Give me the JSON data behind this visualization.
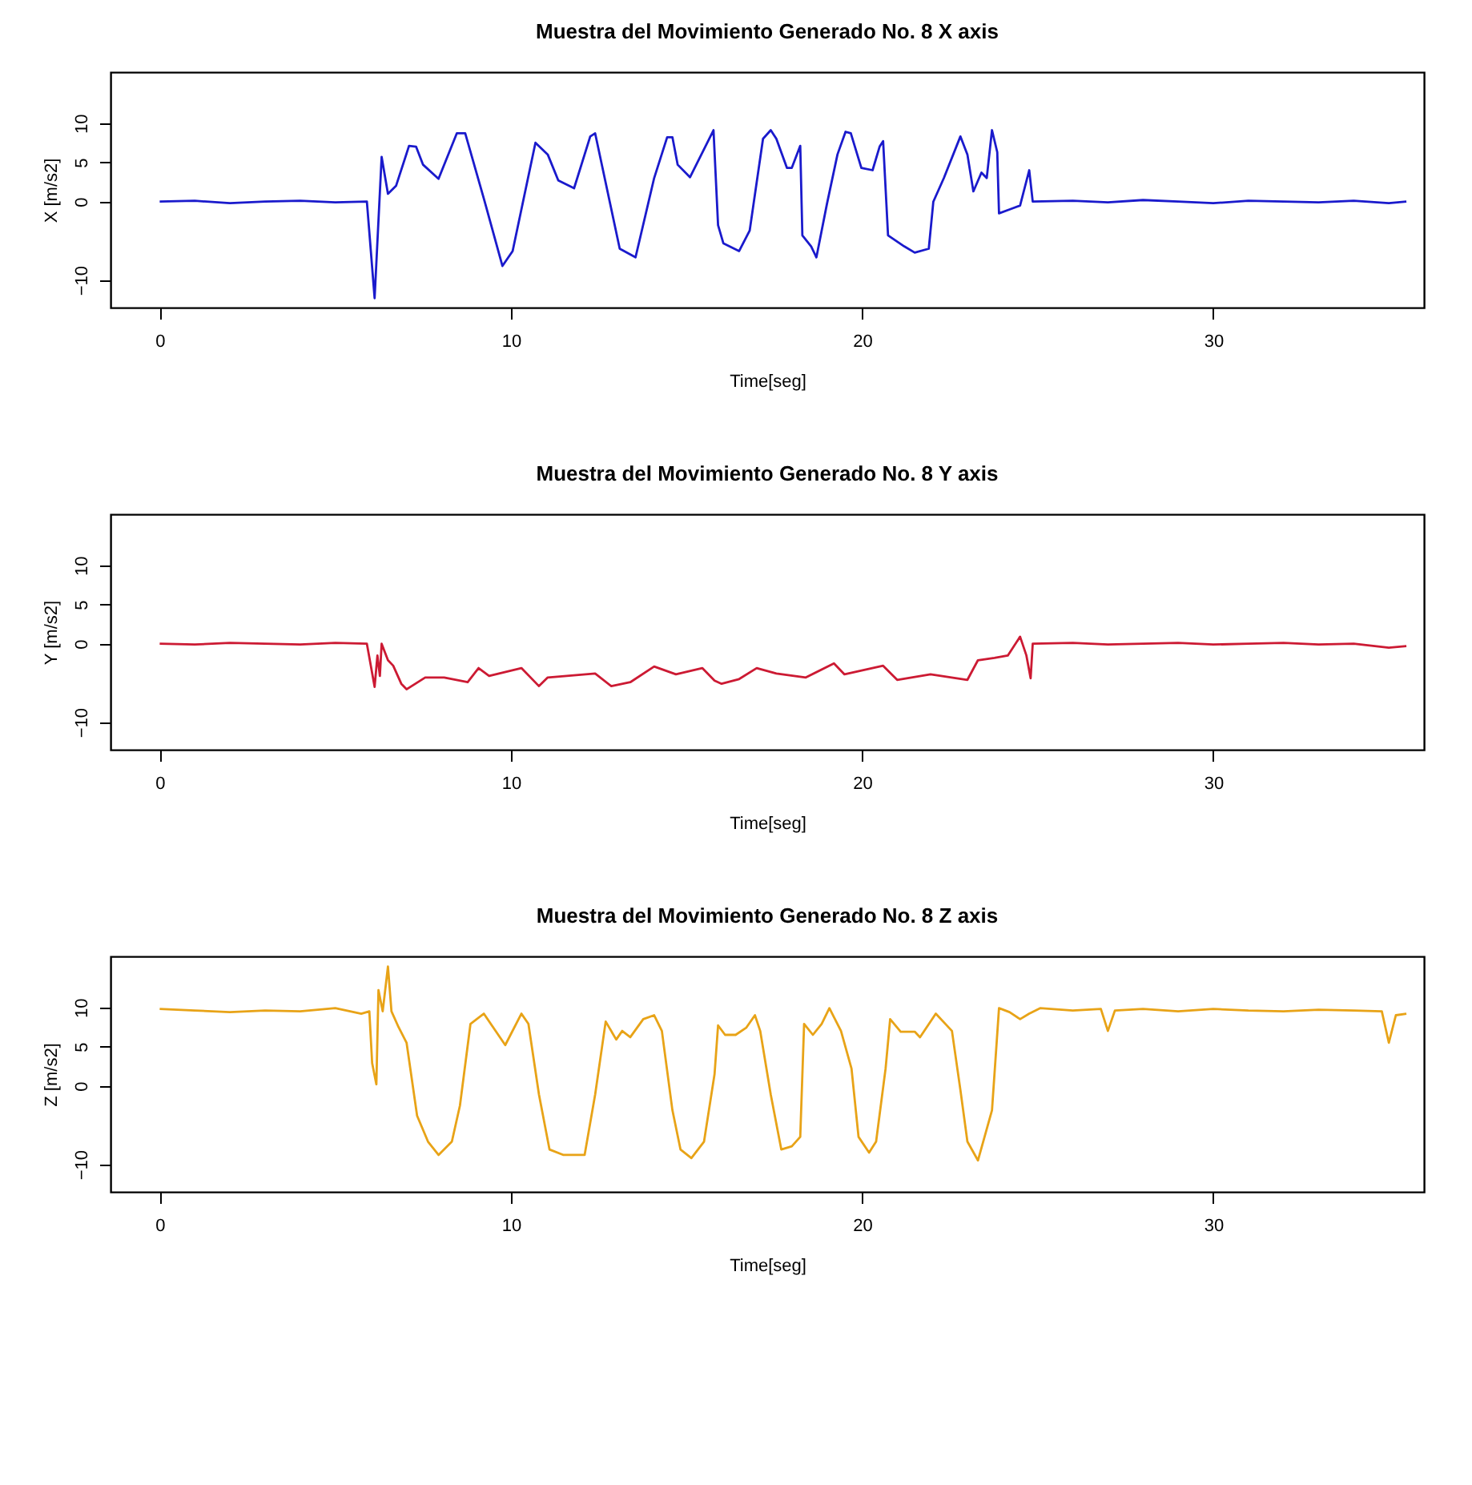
{
  "chart_data": [
    {
      "type": "line",
      "title": "Muestra del Movimiento Generado No.  8 X axis",
      "xlabel": "Time[seg]",
      "ylabel": "X [m/s2]",
      "color": "#1a1acc",
      "xlim": [
        -1.4,
        36
      ],
      "ylim": [
        -13.5,
        16.5
      ],
      "xticks": [
        0,
        10,
        20,
        30
      ],
      "yticks": [
        -10,
        0,
        5,
        10
      ],
      "x": [
        0,
        1,
        2,
        3,
        4,
        5,
        5.9,
        6.12,
        6.32,
        6.5,
        6.73,
        7.1,
        7.3,
        7.5,
        7.94,
        8.46,
        8.7,
        9.23,
        9.76,
        10.05,
        10.7,
        11.05,
        11.35,
        11.8,
        12.26,
        12.4,
        13.1,
        13.55,
        14.08,
        14.45,
        14.6,
        14.75,
        15.1,
        15.77,
        15.9,
        16.05,
        16.5,
        16.8,
        17.18,
        17.4,
        17.56,
        17.86,
        18.0,
        18.24,
        18.3,
        18.55,
        18.7,
        19.0,
        19.3,
        19.53,
        19.68,
        19.98,
        20.3,
        20.5,
        20.6,
        20.74,
        21.2,
        21.5,
        21.9,
        22.03,
        22.33,
        22.8,
        23.0,
        23.17,
        23.4,
        23.55,
        23.7,
        23.85,
        23.9,
        24.2,
        24.5,
        24.76,
        24.86,
        26,
        27,
        28,
        29,
        30,
        31,
        32,
        33,
        34,
        35,
        35.5
      ],
      "values": [
        0,
        0.1,
        -0.2,
        0,
        0.1,
        -0.1,
        0,
        -12.3,
        5.7,
        1,
        2,
        7.1,
        7,
        4.7,
        2.9,
        8.7,
        8.7,
        0.4,
        -8.2,
        -6.3,
        7.5,
        6,
        2.7,
        1.7,
        8.3,
        8.7,
        -6,
        -7.1,
        3,
        8.2,
        8.2,
        4.7,
        3.1,
        9.1,
        -3,
        -5.3,
        -6.3,
        -3.7,
        8,
        9.1,
        8,
        4.3,
        4.3,
        7.1,
        -4.3,
        -5.7,
        -7.1,
        -0.3,
        6,
        8.9,
        8.7,
        4.3,
        4,
        7,
        7.7,
        -4.3,
        -5.7,
        -6.5,
        -6,
        0,
        3,
        8.3,
        6,
        1.3,
        3.7,
        3,
        9.1,
        6.3,
        -1.5,
        -1,
        -0.5,
        4,
        0,
        0.1,
        -0.1,
        0.2,
        0,
        -0.2,
        0.1,
        0,
        -0.1,
        0.1,
        -0.2,
        0
      ]
    },
    {
      "type": "line",
      "title": "Muestra del Movimiento Generado No.  8 Y axis",
      "xlabel": "Time[seg]",
      "ylabel": "Y [m/s2]",
      "color": "#cc1a33",
      "xlim": [
        -1.4,
        36
      ],
      "ylim": [
        -13.5,
        16.5
      ],
      "xticks": [
        0,
        10,
        20,
        30
      ],
      "yticks": [
        -10,
        0,
        5,
        10
      ],
      "x": [
        0,
        1,
        2,
        3,
        4,
        5,
        5.9,
        6.12,
        6.2,
        6.27,
        6.32,
        6.5,
        6.65,
        6.88,
        7.03,
        7.56,
        8.1,
        8.77,
        9.08,
        9.38,
        10.3,
        10.8,
        11.05,
        12.4,
        12.86,
        13.4,
        14.08,
        14.7,
        15.45,
        15.8,
        16.0,
        16.5,
        17.0,
        17.56,
        18.4,
        19.2,
        19.5,
        20.6,
        21.0,
        21.95,
        23.0,
        23.3,
        23.77,
        24.15,
        24.5,
        24.68,
        24.8,
        24.86,
        26,
        27,
        28,
        29,
        30,
        31,
        32,
        33,
        34,
        35,
        35.5
      ],
      "values": [
        0,
        -0.1,
        0.1,
        0,
        -0.1,
        0.1,
        0,
        -5.5,
        -1.5,
        -4.1,
        0,
        -2.1,
        -2.8,
        -5.1,
        -5.8,
        -4.3,
        -4.3,
        -4.9,
        -3.1,
        -4.1,
        -3.1,
        -5.4,
        -4.3,
        -3.8,
        -5.4,
        -4.9,
        -2.9,
        -3.9,
        -3.1,
        -4.7,
        -5.1,
        -4.5,
        -3.1,
        -3.8,
        -4.3,
        -2.5,
        -3.9,
        -2.8,
        -4.6,
        -3.9,
        -4.6,
        -2.1,
        -1.8,
        -1.5,
        0.9,
        -1.5,
        -4.4,
        0,
        0.1,
        -0.1,
        0,
        0.1,
        -0.1,
        0,
        0.1,
        -0.1,
        0,
        -0.5,
        -0.3
      ]
    },
    {
      "type": "line",
      "title": "Muestra del Movimiento Generado No.  8 Z axis",
      "xlabel": "Time[seg]",
      "ylabel": "Z [m/s2]",
      "color": "#e8a317",
      "xlim": [
        -1.4,
        36
      ],
      "ylim": [
        -13.5,
        16.5
      ],
      "xticks": [
        0,
        10,
        20,
        30
      ],
      "yticks": [
        -10,
        0,
        5,
        10
      ],
      "x": [
        0,
        1,
        2,
        3,
        4,
        5,
        5.74,
        5.97,
        6.05,
        6.17,
        6.23,
        6.35,
        6.5,
        6.6,
        6.8,
        7.03,
        7.33,
        7.64,
        7.94,
        8.32,
        8.55,
        8.85,
        9.23,
        9.84,
        10.3,
        10.5,
        10.8,
        11.1,
        11.5,
        12.1,
        12.4,
        12.7,
        13.0,
        13.17,
        13.4,
        13.77,
        14.08,
        14.3,
        14.6,
        14.83,
        15.14,
        15.5,
        15.8,
        15.9,
        16.1,
        16.4,
        16.7,
        16.95,
        17.1,
        17.4,
        17.7,
        18.0,
        18.24,
        18.35,
        18.6,
        18.85,
        19.07,
        19.4,
        19.7,
        19.9,
        20.2,
        20.4,
        20.67,
        20.8,
        21.1,
        21.5,
        21.65,
        22.1,
        22.56,
        22.8,
        23.0,
        23.3,
        23.7,
        23.9,
        24.2,
        24.5,
        24.76,
        25.07,
        26,
        26.8,
        27,
        27.2,
        28,
        29,
        30,
        31,
        32,
        33,
        34,
        34.8,
        35,
        35.2,
        35.5
      ],
      "values": [
        9.8,
        9.6,
        9.4,
        9.6,
        9.5,
        9.9,
        9.2,
        9.5,
        2.9,
        0.2,
        12.2,
        9.5,
        15.2,
        9.5,
        7.5,
        5.5,
        -3.8,
        -7.1,
        -8.8,
        -7.1,
        -2.5,
        7.9,
        9.2,
        5.2,
        9.2,
        7.9,
        -1.1,
        -8.1,
        -8.8,
        -8.8,
        -1.1,
        8.2,
        5.9,
        7,
        6.2,
        8.5,
        9,
        7,
        -3.1,
        -8.1,
        -9.2,
        -7.1,
        1.5,
        7.7,
        6.5,
        6.5,
        7.4,
        9,
        7,
        -1.1,
        -8.1,
        -7.7,
        -6.5,
        7.9,
        6.5,
        7.9,
        9.9,
        7,
        2.2,
        -6.5,
        -8.5,
        -7.1,
        2.2,
        8.5,
        6.9,
        6.9,
        6.2,
        9.2,
        7,
        -0.5,
        -7.1,
        -9.5,
        -3.1,
        9.9,
        9.4,
        8.5,
        9.2,
        9.9,
        9.6,
        9.8,
        7,
        9.6,
        9.8,
        9.5,
        9.8,
        9.6,
        9.5,
        9.7,
        9.6,
        9.5,
        5.5,
        9,
        9.2
      ]
    }
  ]
}
